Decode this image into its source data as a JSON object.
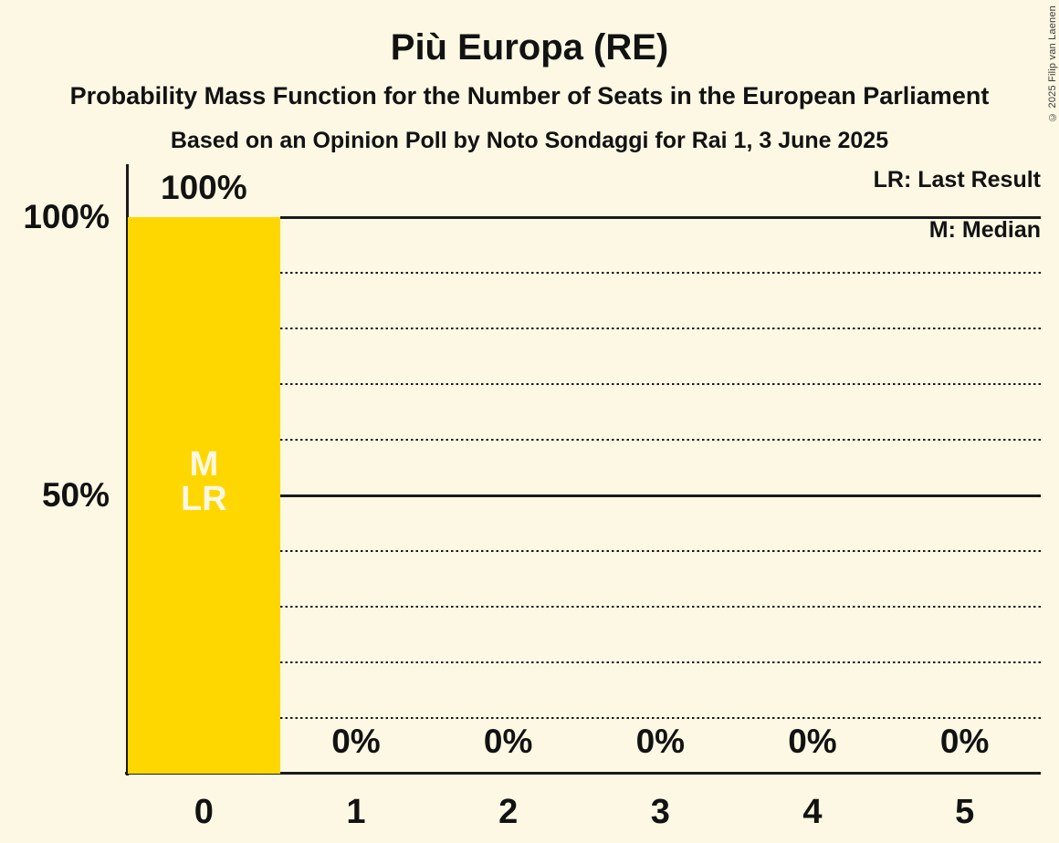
{
  "title": "Più Europa (RE)",
  "subtitles": [
    "Probability Mass Function for the Number of Seats in the European Parliament",
    "Based on an Opinion Poll by Noto Sondaggi for Rai 1, 3 June 2025"
  ],
  "copyright": "© 2025 Filip van Laenen",
  "legend": {
    "last_result": "LR: Last Result",
    "median": "M: Median"
  },
  "colors": {
    "background": "#FCF8E3",
    "bar": "#FFD700",
    "text": "#121212",
    "line": "#1A1A1A",
    "bar_inner_label": "#FCF8E3"
  },
  "y_axis": {
    "ticks": [
      {
        "label": "100%",
        "value": 100
      },
      {
        "label": "50%",
        "value": 50
      }
    ]
  },
  "chart_data": {
    "type": "bar",
    "title": "Più Europa (RE)",
    "categories": [
      "0",
      "1",
      "2",
      "3",
      "4",
      "5"
    ],
    "values": [
      100,
      0,
      0,
      0,
      0,
      0
    ],
    "bar_labels": [
      "100%",
      "0%",
      "0%",
      "0%",
      "0%",
      "0%"
    ],
    "annotations": [
      {
        "category": "0",
        "lines": [
          "M",
          "LR"
        ],
        "meaning": [
          "Median",
          "Last Result"
        ]
      }
    ],
    "ylim": [
      0,
      100
    ],
    "gridlines": {
      "solid_at": [
        100,
        50,
        0
      ],
      "dotted_at": [
        90,
        80,
        70,
        60,
        40,
        30,
        20,
        10
      ]
    },
    "legend_position": "top-right",
    "xlabel": "",
    "ylabel": ""
  }
}
